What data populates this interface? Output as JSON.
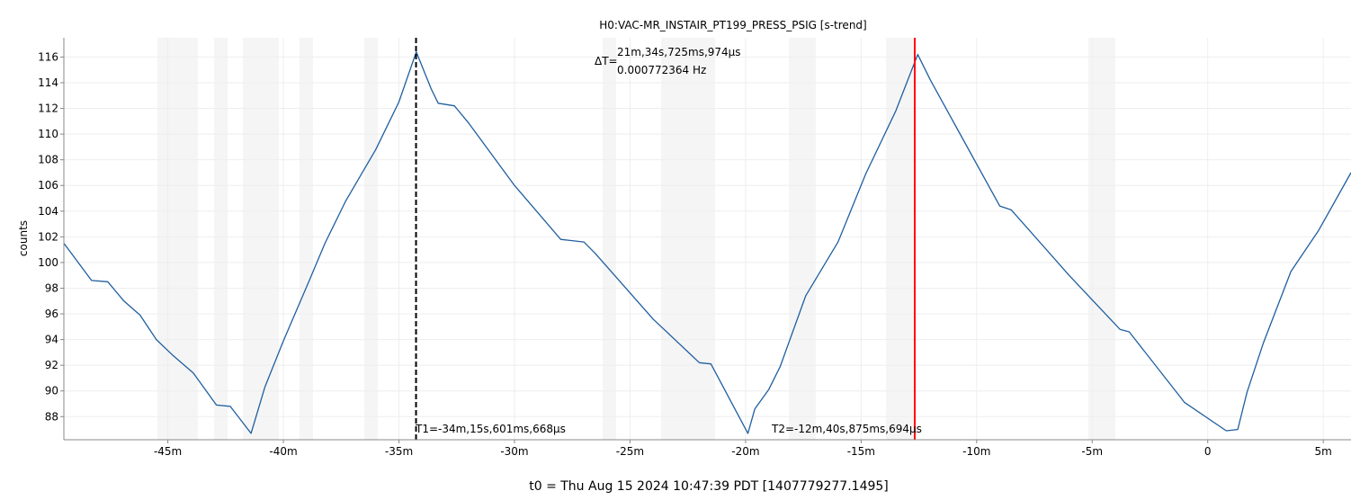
{
  "title": "H0:VAC-MR_INSTAIR_PT199_PRESS_PSIG [s-trend]",
  "footer": "t0 = Thu Aug 15 2024 10:47:39 PDT [1407779277.1495]",
  "cursors": {
    "delta_time": "21m,34s,725ms,974µs",
    "delta_freq": "0.000772364 Hz",
    "delta_prefix": "ΔT=",
    "t1_label": "T1=-34m,15s,601ms,668µs",
    "t2_label": "T2=-12m,40s,875ms,694µs",
    "t1_value": -34.26,
    "t2_value": -12.68,
    "t1_color": "#000000",
    "t2_color": "#ff0000"
  },
  "chart_data": {
    "type": "line",
    "title": "H0:VAC-MR_INSTAIR_PT199_PRESS_PSIG [s-trend]",
    "xlabel": "",
    "ylabel": "counts",
    "xlim": [
      -49.5,
      6.2
    ],
    "ylim": [
      86.2,
      117.5
    ],
    "grid": true,
    "x_ticks": [
      -45,
      -40,
      -35,
      -30,
      -25,
      -20,
      -15,
      -10,
      -5,
      0,
      5
    ],
    "x_tick_labels": [
      "-45m",
      "-40m",
      "-35m",
      "-30m",
      "-25m",
      "-20m",
      "-15m",
      "-10m",
      "-5m",
      "0",
      "5m"
    ],
    "y_ticks": [
      88,
      90,
      92,
      94,
      96,
      98,
      100,
      102,
      104,
      106,
      108,
      110,
      112,
      114,
      116
    ],
    "series": [
      {
        "color": "#1f5f9f",
        "x": [
          -49.5,
          -48.3,
          -47.6,
          -46.9,
          -46.2,
          -45.5,
          -44.8,
          -43.9,
          -42.9,
          -42.3,
          -41.4,
          -40.8,
          -40.0,
          -38.9,
          -38.2,
          -37.3,
          -36.0,
          -35.0,
          -34.25,
          -33.6,
          -33.3,
          -32.6,
          -32.0,
          -30.0,
          -28.0,
          -27.0,
          -26.5,
          -24.0,
          -22.0,
          -21.5,
          -19.9,
          -19.6,
          -19.0,
          -18.5,
          -17.4,
          -16.0,
          -14.8,
          -13.5,
          -12.55,
          -12.0,
          -10.9,
          -9.0,
          -8.5,
          -6.0,
          -3.8,
          -3.4,
          -1.0,
          0.8,
          1.3,
          1.7,
          2.4,
          3.6,
          4.8,
          6.2
        ],
        "y": [
          101.5,
          98.6,
          98.5,
          97.0,
          95.9,
          94.0,
          92.8,
          91.4,
          88.9,
          88.8,
          86.7,
          90.3,
          93.9,
          98.5,
          101.5,
          104.8,
          108.8,
          112.5,
          116.4,
          113.5,
          112.4,
          112.2,
          110.9,
          106.0,
          101.8,
          101.6,
          100.7,
          95.6,
          92.2,
          92.1,
          86.7,
          88.6,
          90.1,
          91.9,
          97.4,
          101.6,
          106.9,
          111.8,
          116.2,
          114.2,
          110.6,
          104.4,
          104.1,
          99.0,
          94.8,
          94.6,
          89.1,
          86.9,
          87.0,
          89.9,
          93.7,
          99.3,
          102.5,
          107.0
        ]
      }
    ]
  }
}
